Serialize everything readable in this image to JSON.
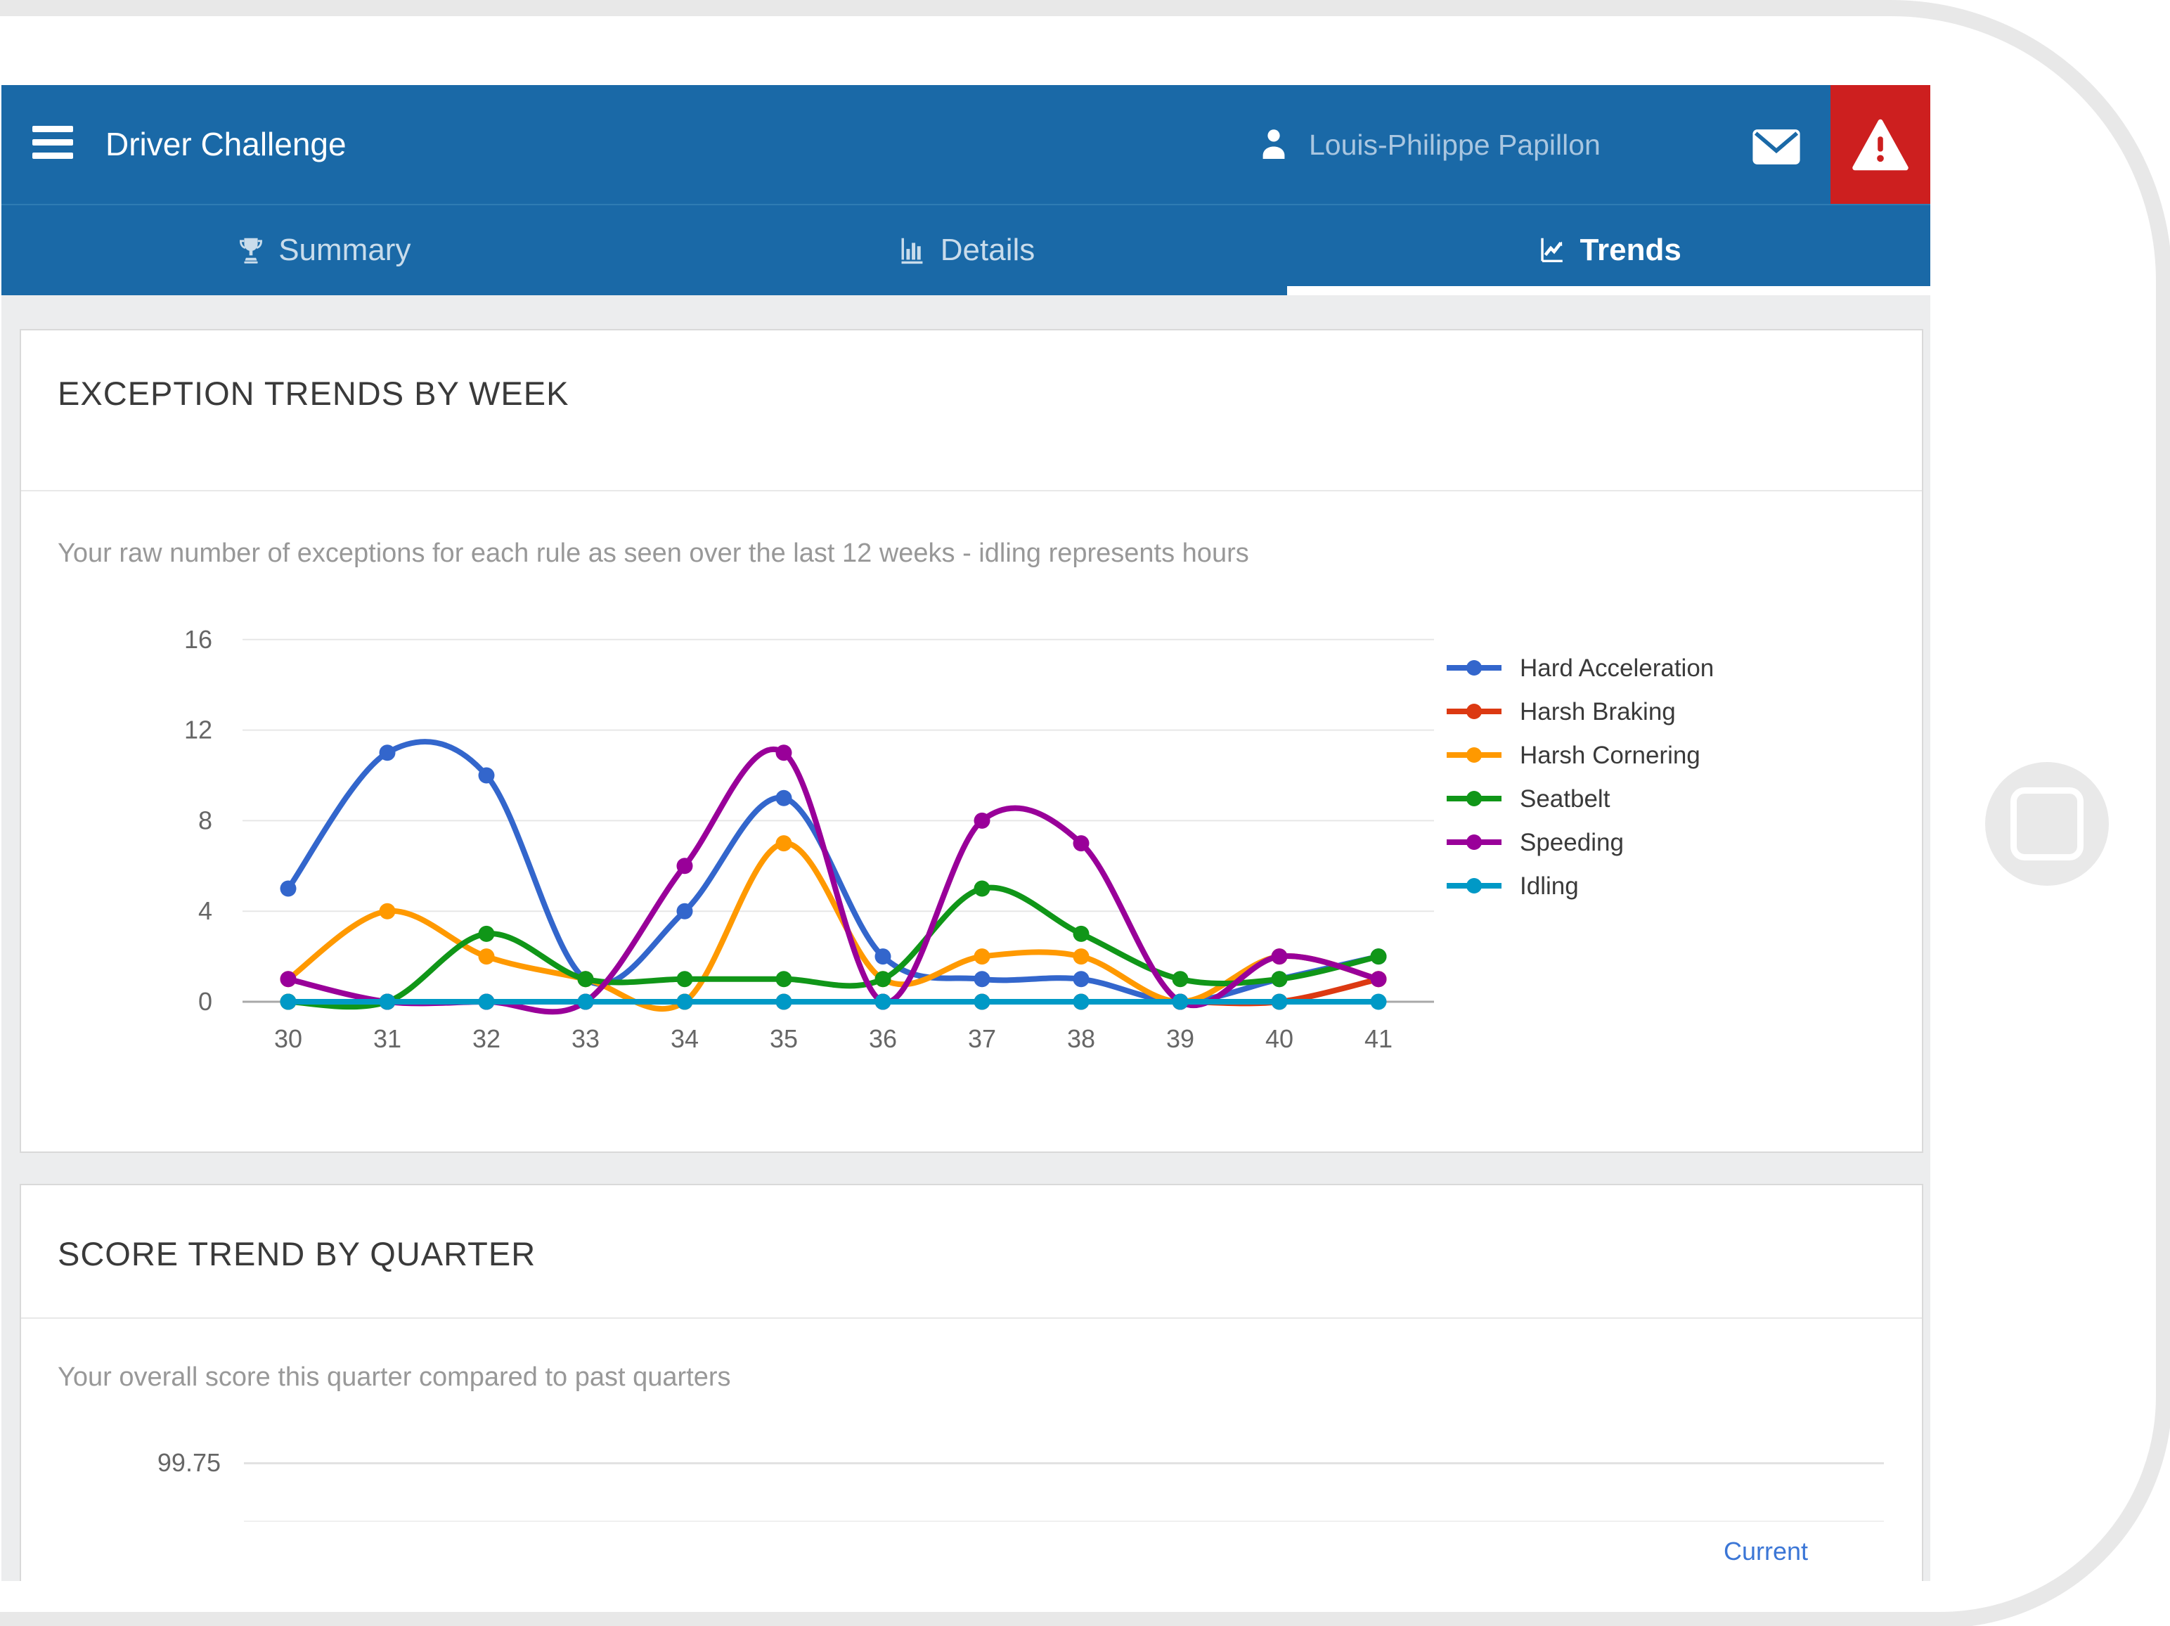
{
  "header": {
    "title": "Driver Challenge",
    "user_name": "Louis-Philippe Papillon"
  },
  "tabs": [
    {
      "label": "Summary",
      "icon": "trophy-icon",
      "active": false
    },
    {
      "label": "Details",
      "icon": "bar-chart-icon",
      "active": false
    },
    {
      "label": "Trends",
      "icon": "line-chart-icon",
      "active": true
    }
  ],
  "cards": [
    {
      "title": "EXCEPTION TRENDS BY WEEK",
      "subtitle": "Your raw number of exceptions for each rule as seen over the last 12 weeks - idling represents hours"
    },
    {
      "title": "SCORE TREND BY QUARTER",
      "subtitle": "Your overall score this quarter compared to past quarters",
      "visible_ytick": "99.75",
      "annotation": "Current"
    }
  ],
  "colors": {
    "header_blue": "#1a69a7",
    "alert_red": "#cd1f1f",
    "page_bg": "#ecedee",
    "username_text": "#a9c6e0",
    "inactive_tab": "#c9dceb",
    "link_blue": "#3b76d6",
    "grid": "#e7e7e7",
    "axis": "#a8a8a8"
  },
  "chart_data": [
    {
      "type": "line",
      "title": "EXCEPTION TRENDS BY WEEK",
      "x": [
        30,
        31,
        32,
        33,
        34,
        35,
        36,
        37,
        38,
        39,
        40,
        41
      ],
      "xlabel": "",
      "ylabel": "",
      "ylim": [
        0,
        16
      ],
      "yticks": [
        0,
        4,
        8,
        12,
        16
      ],
      "grid": true,
      "legend_position": "right",
      "series": [
        {
          "name": "Hard Acceleration",
          "color": "#3366CC",
          "values": [
            5,
            11,
            10,
            1,
            4,
            9,
            2,
            1,
            1,
            0,
            1,
            2
          ]
        },
        {
          "name": "Harsh Braking",
          "color": "#DC3912",
          "values": [
            0,
            0,
            0,
            0,
            0,
            0,
            0,
            0,
            0,
            0,
            0,
            1
          ]
        },
        {
          "name": "Harsh Cornering",
          "color": "#FF9900",
          "values": [
            1,
            4,
            2,
            1,
            0,
            7,
            1,
            2,
            2,
            0,
            2,
            1
          ]
        },
        {
          "name": "Seatbelt",
          "color": "#109618",
          "values": [
            0,
            0,
            3,
            1,
            1,
            1,
            1,
            5,
            3,
            1,
            1,
            2
          ]
        },
        {
          "name": "Speeding",
          "color": "#990099",
          "values": [
            1,
            0,
            0,
            0,
            6,
            11,
            0,
            8,
            7,
            0,
            2,
            1
          ]
        },
        {
          "name": "Idling",
          "color": "#0099C6",
          "values": [
            0,
            0,
            0,
            0,
            0,
            0,
            0,
            0,
            0,
            0,
            0,
            0
          ]
        }
      ]
    },
    {
      "type": "line",
      "title": "SCORE TREND BY QUARTER",
      "visible_ytick": "99.75",
      "annotation": "Current"
    }
  ]
}
